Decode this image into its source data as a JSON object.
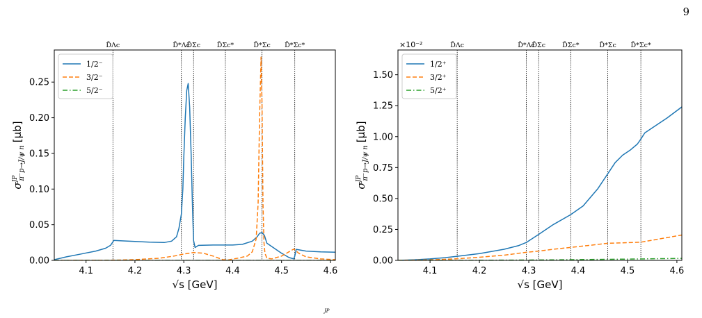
{
  "page": {
    "number": "9"
  },
  "caption_fragment": "JP",
  "chart_data": [
    {
      "type": "line",
      "xlabel": "√s [GeV]",
      "ylabel": "σ^{J^P}_{π⁻p→J/ψ n} [μb]",
      "ylabel_main": "σ",
      "ylabel_sup": "JP",
      "ylabel_sub": "π⁻p→J/ψ n",
      "ylabel_unit": "[μb]",
      "xlim": [
        4.035,
        4.61
      ],
      "ylim": [
        0,
        0.295
      ],
      "x_ticks": [
        4.1,
        4.2,
        4.3,
        4.4,
        4.5,
        4.6
      ],
      "x_tick_labels": [
        "4.1",
        "4.2",
        "4.3",
        "4.4",
        "4.5",
        "4.6"
      ],
      "y_ticks": [
        0,
        0.05,
        0.1,
        0.15,
        0.2,
        0.25
      ],
      "y_tick_labels": [
        "0.00",
        "0.05",
        "0.10",
        "0.15",
        "0.20",
        "0.25"
      ],
      "scale_label": "",
      "legend": "top-left",
      "thresholds": [
        {
          "label": "D̄Λc",
          "x": 4.155
        },
        {
          "label": "D̄*Λc",
          "x": 4.295
        },
        {
          "label": "D̄Σc",
          "x": 4.32
        },
        {
          "label": "D̄Σc*",
          "x": 4.385
        },
        {
          "label": "D̄*Σc",
          "x": 4.46
        },
        {
          "label": "D̄*Σc*",
          "x": 4.527
        }
      ],
      "series": [
        {
          "name": "1/2⁻",
          "color": "#1f77b4",
          "dash": "solid",
          "x": [
            4.035,
            4.06,
            4.09,
            4.12,
            4.14,
            4.15,
            4.154,
            4.157,
            4.17,
            4.2,
            4.23,
            4.26,
            4.275,
            4.285,
            4.29,
            4.295,
            4.298,
            4.3,
            4.303,
            4.306,
            4.309,
            4.312,
            4.315,
            4.318,
            4.32,
            4.323,
            4.33,
            4.36,
            4.4,
            4.42,
            4.44,
            4.45,
            4.455,
            4.46,
            4.465,
            4.47,
            4.5,
            4.515,
            4.525,
            4.527,
            4.53,
            4.55,
            4.58,
            4.61
          ],
          "y": [
            0.001,
            0.005,
            0.009,
            0.013,
            0.017,
            0.021,
            0.025,
            0.028,
            0.0275,
            0.0265,
            0.0255,
            0.025,
            0.027,
            0.033,
            0.045,
            0.065,
            0.1,
            0.145,
            0.2,
            0.238,
            0.248,
            0.215,
            0.15,
            0.07,
            0.028,
            0.018,
            0.021,
            0.0215,
            0.0215,
            0.0225,
            0.027,
            0.033,
            0.038,
            0.039,
            0.035,
            0.024,
            0.01,
            0.004,
            0.002,
            0.006,
            0.0155,
            0.013,
            0.012,
            0.0115
          ]
        },
        {
          "name": "3/2⁻",
          "color": "#ff7f0e",
          "dash": "dashed",
          "x": [
            4.035,
            4.15,
            4.2,
            4.25,
            4.28,
            4.3,
            4.32,
            4.34,
            4.36,
            4.38,
            4.39,
            4.41,
            4.43,
            4.44,
            4.448,
            4.452,
            4.455,
            4.458,
            4.46,
            4.462,
            4.464,
            4.466,
            4.47,
            4.48,
            4.5,
            4.515,
            4.525,
            4.535,
            4.55,
            4.58,
            4.61
          ],
          "y": [
            0.0,
            0.0002,
            0.001,
            0.003,
            0.006,
            0.009,
            0.011,
            0.01,
            0.006,
            0.001,
            0.0005,
            0.003,
            0.006,
            0.012,
            0.03,
            0.08,
            0.2,
            0.285,
            0.22,
            0.08,
            0.025,
            0.01,
            0.003,
            0.002,
            0.006,
            0.012,
            0.016,
            0.01,
            0.005,
            0.002,
            0.001
          ]
        },
        {
          "name": "5/2⁻",
          "color": "#2ca02c",
          "dash": "dashdot",
          "x": [
            4.035,
            4.61
          ],
          "y": [
            0.0,
            0.0
          ]
        }
      ]
    },
    {
      "type": "line",
      "xlabel": "√s [GeV]",
      "ylabel": "σ^{J^P}_{π⁻p→J/ψ n} [μb]",
      "ylabel_main": "σ",
      "ylabel_sup": "JP",
      "ylabel_sub": "π⁻p→J/ψ n",
      "ylabel_unit": "[μb]",
      "xlim": [
        4.035,
        4.61
      ],
      "ylim": [
        0,
        1.7
      ],
      "x_ticks": [
        4.1,
        4.2,
        4.3,
        4.4,
        4.5,
        4.6
      ],
      "x_tick_labels": [
        "4.1",
        "4.2",
        "4.3",
        "4.4",
        "4.5",
        "4.6"
      ],
      "y_ticks": [
        0,
        0.25,
        0.5,
        0.75,
        1.0,
        1.25,
        1.5
      ],
      "y_tick_labels": [
        "0.00",
        "0.25",
        "0.50",
        "0.75",
        "1.00",
        "1.25",
        "1.50"
      ],
      "scale_label": "×10⁻²",
      "legend": "top-left",
      "thresholds": [
        {
          "label": "D̄Λc",
          "x": 4.155
        },
        {
          "label": "D̄*Λc",
          "x": 4.295
        },
        {
          "label": "D̄Σc",
          "x": 4.32
        },
        {
          "label": "D̄Σc*",
          "x": 4.385
        },
        {
          "label": "D̄*Σc",
          "x": 4.46
        },
        {
          "label": "D̄*Σc*",
          "x": 4.527
        }
      ],
      "series": [
        {
          "name": "1/2⁺",
          "color": "#1f77b4",
          "dash": "solid",
          "x": [
            4.035,
            4.07,
            4.1,
            4.13,
            4.155,
            4.2,
            4.25,
            4.28,
            4.295,
            4.32,
            4.35,
            4.385,
            4.41,
            4.44,
            4.46,
            4.475,
            4.49,
            4.505,
            4.52,
            4.527,
            4.535,
            4.55,
            4.58,
            4.61
          ],
          "y": [
            0.0,
            0.005,
            0.012,
            0.022,
            0.033,
            0.055,
            0.09,
            0.12,
            0.145,
            0.21,
            0.29,
            0.37,
            0.44,
            0.58,
            0.7,
            0.79,
            0.85,
            0.89,
            0.94,
            0.98,
            1.03,
            1.07,
            1.15,
            1.24
          ]
        },
        {
          "name": "3/2⁺",
          "color": "#ff7f0e",
          "dash": "dashed",
          "x": [
            4.035,
            4.1,
            4.15,
            4.2,
            4.25,
            4.295,
            4.32,
            4.35,
            4.385,
            4.42,
            4.46,
            4.5,
            4.527,
            4.56,
            4.61
          ],
          "y": [
            0.0,
            0.004,
            0.012,
            0.025,
            0.042,
            0.065,
            0.075,
            0.09,
            0.105,
            0.12,
            0.138,
            0.143,
            0.147,
            0.17,
            0.205
          ]
        },
        {
          "name": "5/2⁺",
          "color": "#2ca02c",
          "dash": "dashdot",
          "x": [
            4.035,
            4.2,
            4.3,
            4.4,
            4.5,
            4.61
          ],
          "y": [
            0.0,
            0.001,
            0.003,
            0.006,
            0.01,
            0.016
          ]
        }
      ]
    }
  ]
}
